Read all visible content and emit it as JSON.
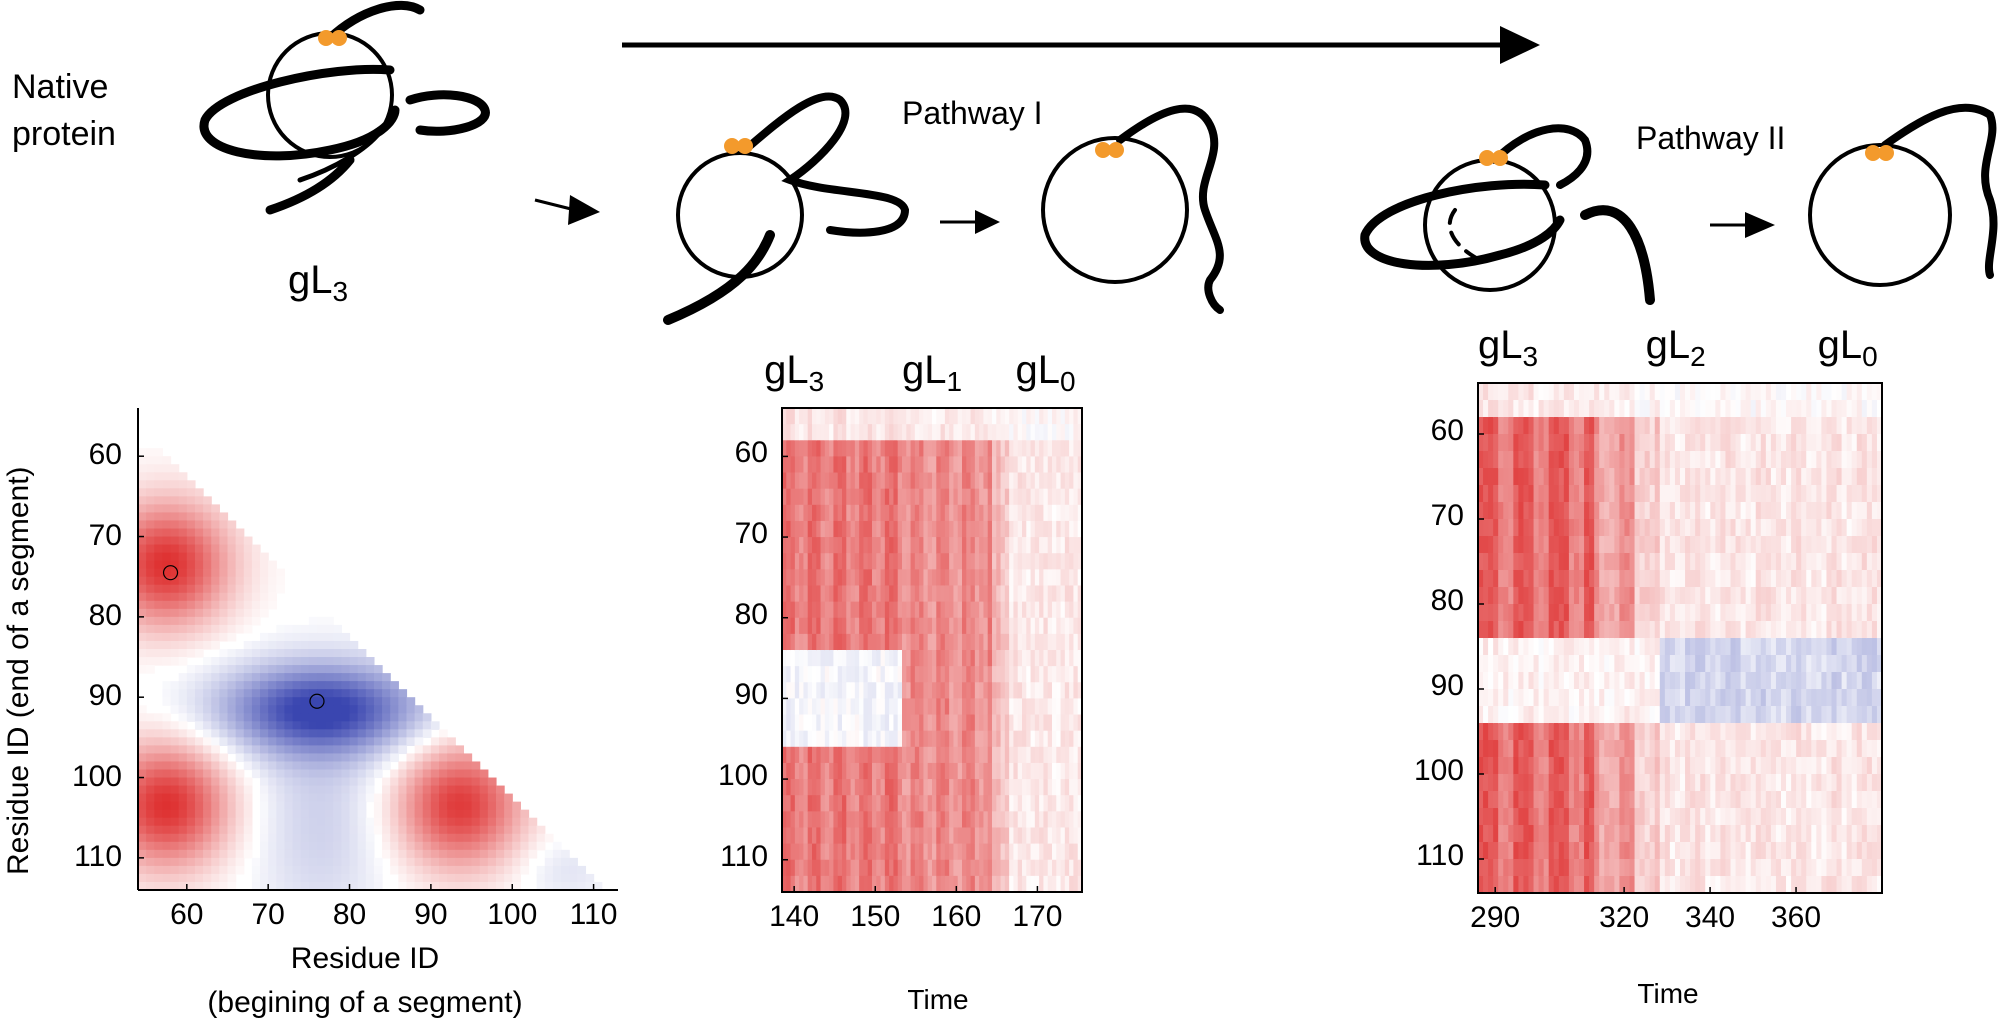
{
  "schematic": {
    "native_label_line1": "Native",
    "native_label_line2": "protein",
    "native_state": "gL",
    "native_state_sub": "3",
    "pathway1_label": "Pathway I",
    "pathway2_label": "Pathway II",
    "colors": {
      "lasso": "#000000",
      "crosslink": "#f39a2c"
    }
  },
  "chart_data": [
    {
      "type": "heatmap",
      "id": "pair-map",
      "xlabel_line1": "Residue ID",
      "xlabel_line2": "(begining of a segment)",
      "ylabel": "Residue ID (end of a segment)",
      "xticks": [
        "60",
        "70",
        "80",
        "90",
        "100",
        "110"
      ],
      "yticks": [
        "60",
        "70",
        "80",
        "90",
        "100",
        "110"
      ],
      "xlim": [
        54,
        113
      ],
      "ylim": [
        54,
        114
      ],
      "markers": [
        {
          "x": 58,
          "y": 74.5,
          "label": "red-extremum"
        },
        {
          "x": 76,
          "y": 90.5,
          "label": "blue-extremum"
        }
      ],
      "colormap": {
        "positive": "#dd2e2e",
        "negative": "#3a45b0",
        "zero": "#ffffff"
      }
    },
    {
      "type": "heatmap",
      "id": "pathway-1-time",
      "xlabel": "Time",
      "xticks": [
        "140",
        "150",
        "160",
        "170"
      ],
      "yticks": [
        "60",
        "70",
        "80",
        "90",
        "100",
        "110"
      ],
      "xlim": [
        138.5,
        175.5
      ],
      "ylim": [
        54,
        114
      ],
      "state_labels": [
        {
          "text": "gL",
          "sub": "3",
          "time": 140
        },
        {
          "text": "gL",
          "sub": "1",
          "time": 157
        },
        {
          "text": "gL",
          "sub": "0",
          "time": 171
        }
      ]
    },
    {
      "type": "heatmap",
      "id": "pathway-2-time",
      "xlabel": "Time",
      "xticks": [
        "290",
        "320",
        "340",
        "360"
      ],
      "yticks": [
        "60",
        "70",
        "80",
        "90",
        "100",
        "110"
      ],
      "xlim": [
        286,
        380
      ],
      "ylim": [
        54,
        114
      ],
      "state_labels": [
        {
          "text": "gL",
          "sub": "3",
          "time": 293
        },
        {
          "text": "gL",
          "sub": "2",
          "time": 332
        },
        {
          "text": "gL",
          "sub": "0",
          "time": 372
        }
      ]
    }
  ]
}
